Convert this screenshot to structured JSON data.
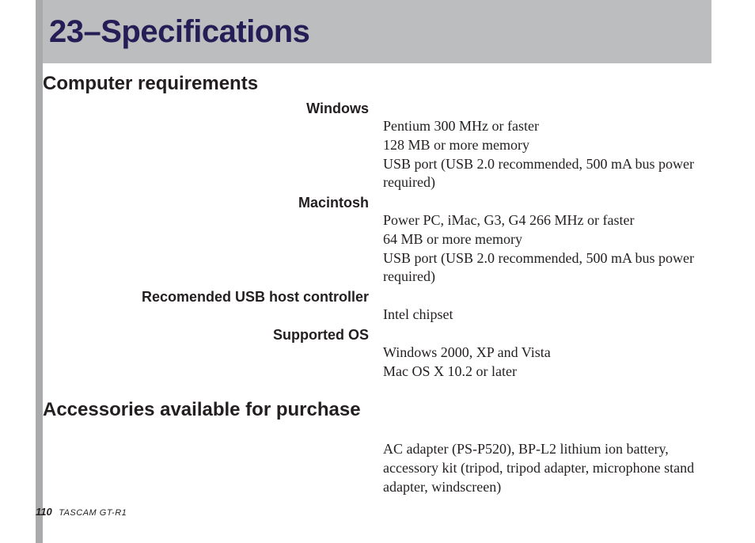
{
  "chapter": {
    "title": "23–Specifications"
  },
  "computer_requirements": {
    "heading": "Computer requirements",
    "windows": {
      "label": "Windows",
      "line1": "Pentium 300 MHz or faster",
      "line2": "128 MB or more memory",
      "line3": "USB port (USB 2.0 recommended, 500 mA bus power required)"
    },
    "macintosh": {
      "label": "Macintosh",
      "line1": "Power PC, iMac, G3, G4 266 MHz or faster",
      "line2": "64 MB or more memory",
      "line3": "USB port (USB 2.0 recommended, 500 mA bus power required)"
    },
    "usb_host": {
      "label": "Recomended USB host controller",
      "line1": "Intel chipset"
    },
    "supported_os": {
      "label": "Supported OS",
      "line1": "Windows 2000, XP and Vista",
      "line2": "Mac OS X 10.2 or later"
    }
  },
  "accessories": {
    "heading": "Accessories available for purchase",
    "text": "AC adapter (PS-P520), BP-L2 lithium ion battery, accessory kit (tripod, tripod adapter, microphone stand adapter, windscreen)"
  },
  "footer": {
    "page_number": "110",
    "model": "TASCAM  GT-R1"
  },
  "colors": {
    "sidebar": "#a9aaac",
    "header_band": "#bcbdbf",
    "title_text": "#231f56",
    "body_text": "#231f20",
    "background": "#ffffff"
  }
}
